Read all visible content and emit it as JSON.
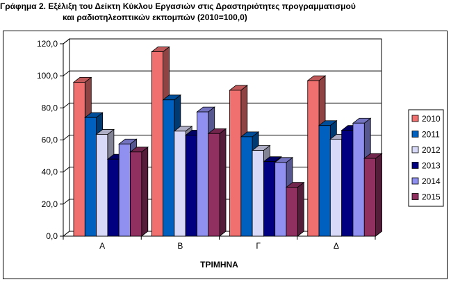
{
  "title_line1": "Γράφημα 2. Εξέλιξη του Δείκτη Κύκλου Εργασιών στις Δραστηριότητες  προγραμματισμού",
  "title_line2": "και ραδιοτηλεοπτικών εκπομπών (2010=100,0)",
  "chart_data": {
    "type": "bar",
    "title": "Γράφημα 2. Εξέλιξη του Δείκτη Κύκλου Εργασιών στις Δραστηριότητες  προγραμματισμού και ραδιοτηλεοπτικών εκπομπών (2010=100,0)",
    "xlabel": "ΤΡΙΜΗΝΑ",
    "ylabel": "",
    "categories": [
      "Α",
      "Β",
      "Γ",
      "Δ"
    ],
    "ylim": [
      0,
      120
    ],
    "yticks": [
      "0,0",
      "20,0",
      "40,0",
      "60,0",
      "80,0",
      "100,0",
      "120,0"
    ],
    "grid": true,
    "legend_position": "right",
    "three_d": true,
    "series": [
      {
        "name": "2010",
        "color": "#f07070",
        "values": [
          96.0,
          115.0,
          91.0,
          97.0
        ]
      },
      {
        "name": "2011",
        "color": "#0060c0",
        "values": [
          74.0,
          85.0,
          62.0,
          69.0
        ]
      },
      {
        "name": "2012",
        "color": "#d8d8f8",
        "values": [
          63.5,
          65.5,
          53.5,
          60.5
        ]
      },
      {
        "name": "2013",
        "color": "#000080",
        "values": [
          48.0,
          63.0,
          46.5,
          66.0
        ]
      },
      {
        "name": "2014",
        "color": "#9090f0",
        "values": [
          57.5,
          77.5,
          46.0,
          70.5
        ]
      },
      {
        "name": "2015",
        "color": "#903060",
        "values": [
          52.5,
          64.0,
          30.5,
          48.5
        ]
      }
    ]
  }
}
